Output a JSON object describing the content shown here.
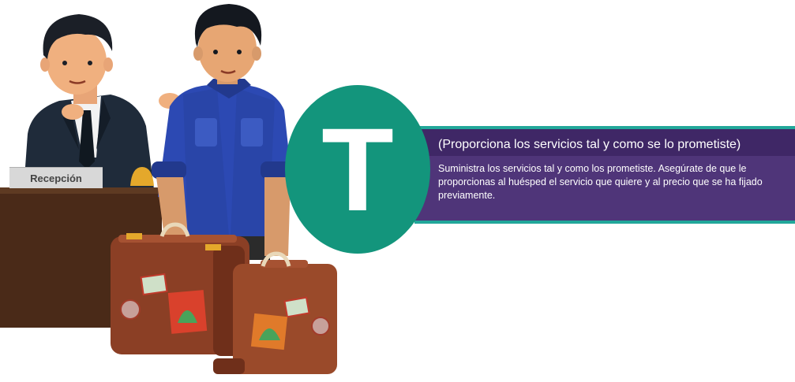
{
  "sign": {
    "label": "Recepción"
  },
  "badge": {
    "letter": "T"
  },
  "banner": {
    "title": "(Proporciona los servicios tal y como se lo prometiste)",
    "body": "Suministra los servicios tal y como los prometiste.  Asegúrate de que le proporcionas al huésped el servicio que quiere y al precio que se ha fijado previamente."
  },
  "colors": {
    "purple": "#4f3579",
    "purple_dark": "#3f2766",
    "teal": "#13957c",
    "teal_border": "#22a79a",
    "suitcase": "#8b3f25",
    "desk": "#4a2a18"
  }
}
